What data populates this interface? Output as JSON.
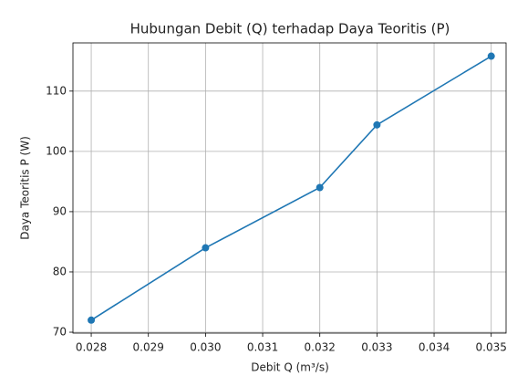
{
  "chart_data": {
    "type": "line",
    "title": "Hubungan Debit (Q) terhadap Daya Teoritis (P)",
    "xlabel": "Debit Q (m³/s)",
    "ylabel": "Daya Teoritis P (W)",
    "x": [
      0.028,
      0.03,
      0.032,
      0.033,
      0.035
    ],
    "series": [
      {
        "name": "P",
        "color": "#1f77b4",
        "values": [
          72.0,
          84.0,
          94.0,
          104.4,
          115.8
        ]
      }
    ],
    "xlim": [
      0.02768,
      0.03526
    ],
    "ylim": [
      69.85,
      118.0
    ],
    "xticks": [
      0.028,
      0.029,
      {
        "value": 0.03,
        "label": "0.030"
      },
      0.031,
      0.032,
      0.033,
      0.034,
      0.035
    ],
    "yticks": [
      70,
      80,
      90,
      100,
      110
    ],
    "grid": true,
    "markers": true
  }
}
